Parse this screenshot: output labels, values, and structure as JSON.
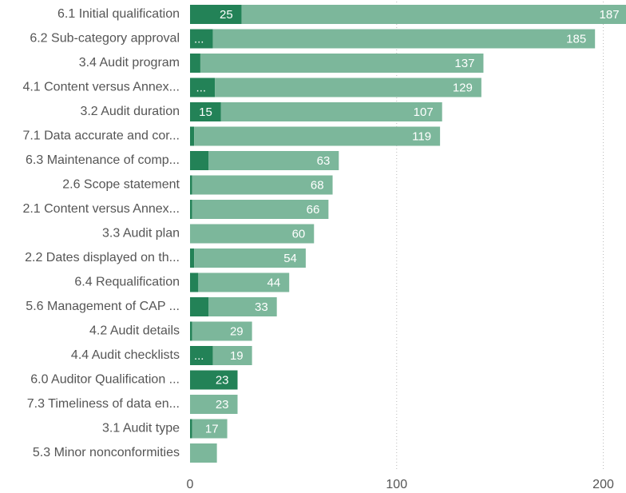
{
  "chart_data": {
    "type": "stacked-bar-horizontal",
    "categories": [
      "6.1 Initial qualification",
      "6.2 Sub-category approval",
      "3.4 Audit program",
      "4.1 Content versus Annex...",
      "3.2 Audit duration",
      "7.1 Data accurate and cor...",
      "6.3 Maintenance of comp...",
      "2.6 Scope statement",
      "2.1 Content versus Annex...",
      "3.3 Audit plan",
      "2.2 Dates displayed on th...",
      "6.4 Requalification",
      "5.6 Management of CAP ...",
      "4.2 Audit details",
      "4.4 Audit checklists",
      "6.0 Auditor Qualification ...",
      "7.3 Timeliness of data en...",
      "3.1 Audit type",
      "5.3 Minor nonconformities"
    ],
    "series": [
      {
        "color": "#238257",
        "values": [
          25,
          11,
          5,
          12,
          15,
          2,
          9,
          1,
          1,
          0,
          2,
          4,
          9,
          1,
          11,
          23,
          0,
          1,
          0
        ],
        "value_labels": [
          "25",
          "...",
          null,
          "...",
          "15",
          null,
          null,
          null,
          null,
          null,
          null,
          null,
          null,
          null,
          "...",
          "23",
          null,
          null,
          null
        ]
      },
      {
        "color": "#7cb79b",
        "values": [
          187,
          185,
          137,
          129,
          107,
          119,
          63,
          68,
          66,
          60,
          54,
          44,
          33,
          29,
          19,
          0,
          23,
          17,
          13
        ],
        "value_labels": [
          "187",
          "185",
          "137",
          "129",
          "107",
          "119",
          "63",
          "68",
          "66",
          "60",
          "54",
          "44",
          "33",
          "29",
          "19",
          null,
          "23",
          "17",
          null
        ]
      }
    ],
    "xlim": [
      0,
      211
    ],
    "xticks": [
      0,
      100,
      200
    ],
    "grid": true
  }
}
